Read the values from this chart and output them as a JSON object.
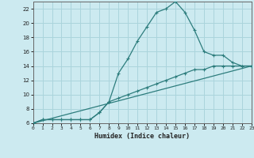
{
  "xlabel": "Humidex (Indice chaleur)",
  "bg_color": "#cceaf0",
  "grid_color": "#aad4dc",
  "line_color": "#2d7d7d",
  "x_min": 0,
  "x_max": 23,
  "y_min": 6,
  "y_max": 23,
  "line1_x": [
    0,
    1,
    2,
    3,
    4,
    5,
    6,
    7,
    8,
    9,
    10,
    11,
    12,
    13,
    14,
    15,
    16,
    17,
    18,
    19,
    20,
    21,
    22,
    23
  ],
  "line1_y": [
    6,
    6.5,
    6.5,
    6.5,
    6.5,
    6.5,
    6.5,
    7.5,
    9.0,
    13,
    15,
    17.5,
    19.5,
    21.5,
    22,
    23,
    21.5,
    19,
    16,
    15.5,
    15.5,
    14.5,
    14,
    14
  ],
  "line2_x": [
    0,
    1,
    2,
    3,
    4,
    5,
    6,
    7,
    8,
    9,
    10,
    11,
    12,
    13,
    14,
    15,
    16,
    17,
    18,
    19,
    20,
    21,
    22,
    23
  ],
  "line2_y": [
    6,
    6.5,
    6.5,
    6.5,
    6.5,
    6.5,
    6.5,
    7.5,
    9.0,
    9.5,
    10,
    10.5,
    11,
    11.5,
    12,
    12.5,
    13,
    13.5,
    13.5,
    14,
    14,
    14,
    14,
    14
  ],
  "line3_x": [
    0,
    23
  ],
  "line3_y": [
    6,
    14
  ]
}
